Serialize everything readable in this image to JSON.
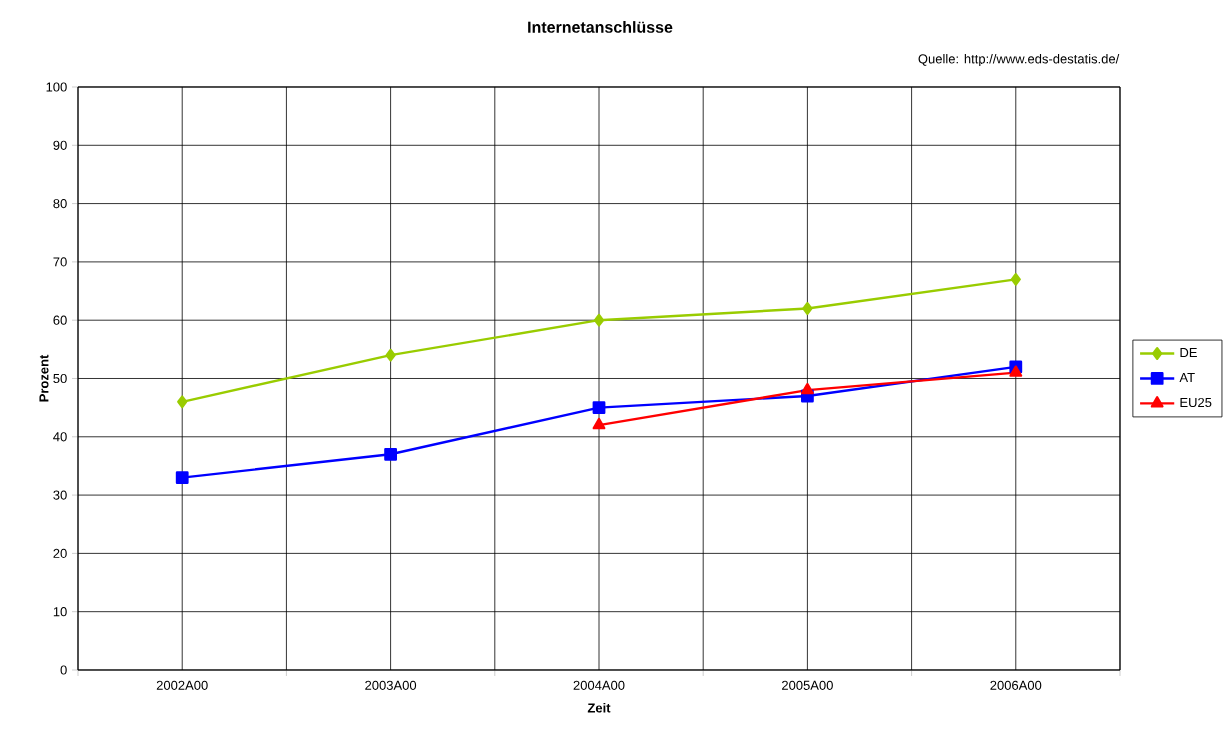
{
  "chart_data": {
    "type": "line",
    "title": "Internetanschlüsse",
    "xlabel": "Zeit",
    "ylabel": "Prozent",
    "annotations": [
      "Quelle: http://www.eds-destatis.de/"
    ],
    "categories": [
      "2002A00",
      "2003A00",
      "2004A00",
      "2005A00",
      "2006A00"
    ],
    "series": [
      {
        "name": "DE",
        "color": "#99cc00",
        "marker": "diamond",
        "values": [
          46,
          54,
          60,
          62,
          67
        ]
      },
      {
        "name": "AT",
        "color": "#0000ff",
        "marker": "square",
        "values": [
          33,
          37,
          45,
          47,
          52
        ]
      },
      {
        "name": "EU25",
        "color": "#ff0000",
        "marker": "triangle",
        "values": [
          null,
          null,
          42,
          48,
          51
        ]
      }
    ],
    "ylim": [
      0,
      100
    ],
    "yticks": [
      0,
      10,
      20,
      30,
      40,
      50,
      60,
      70,
      80,
      90,
      100
    ],
    "grid": true,
    "legend": "right",
    "line_style": "solid"
  }
}
